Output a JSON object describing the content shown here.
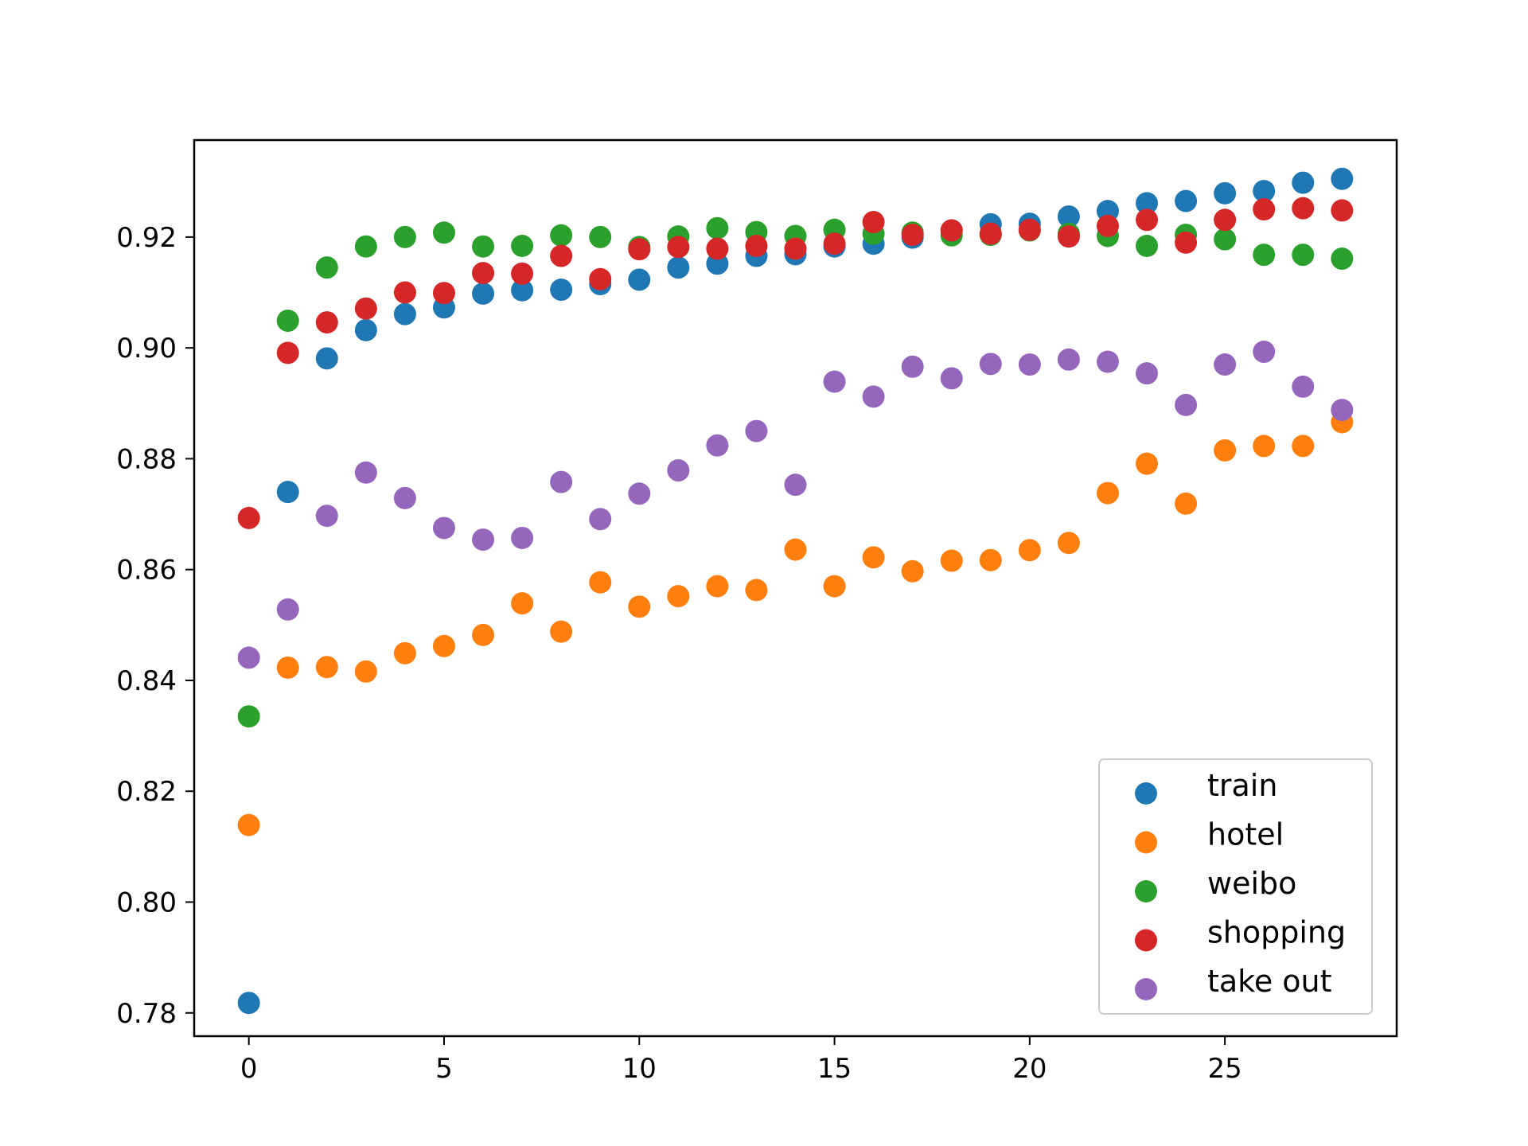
{
  "chart_data": {
    "type": "scatter",
    "title": "",
    "xlabel": "",
    "ylabel": "",
    "xlim": [
      -1.4,
      29.4
    ],
    "ylim": [
      0.7758,
      0.9375
    ],
    "x_ticks": [
      0,
      5,
      10,
      15,
      20,
      25
    ],
    "y_ticks": [
      0.78,
      0.8,
      0.82,
      0.84,
      0.86,
      0.88,
      0.9,
      0.92
    ],
    "x_tick_labels": [
      "0",
      "5",
      "10",
      "15",
      "20",
      "25"
    ],
    "y_tick_labels": [
      "0.78",
      "0.80",
      "0.82",
      "0.84",
      "0.86",
      "0.88",
      "0.90",
      "0.92"
    ],
    "grid": false,
    "legend_position": "lower-right",
    "x": [
      0,
      1,
      2,
      3,
      4,
      5,
      6,
      7,
      8,
      9,
      10,
      11,
      12,
      13,
      14,
      15,
      16,
      17,
      18,
      19,
      20,
      21,
      22,
      23,
      24,
      25,
      26,
      27,
      28
    ],
    "series": [
      {
        "name": "train",
        "color": "#1f77b4",
        "values": [
          0.7818,
          0.874,
          0.8981,
          0.9032,
          0.9061,
          0.9073,
          0.9098,
          0.9104,
          0.9105,
          0.9115,
          0.9123,
          0.9145,
          0.9152,
          0.9166,
          0.9169,
          0.9183,
          0.9188,
          0.9199,
          0.9212,
          0.9223,
          0.9224,
          0.9237,
          0.9247,
          0.9261,
          0.9265,
          0.9279,
          0.9283,
          0.9298,
          0.9305
        ]
      },
      {
        "name": "hotel",
        "color": "#ff7f0e",
        "values": [
          0.8139,
          0.8423,
          0.8424,
          0.8416,
          0.8449,
          0.8462,
          0.8482,
          0.8539,
          0.8488,
          0.8577,
          0.8533,
          0.8552,
          0.857,
          0.8563,
          0.8636,
          0.857,
          0.8622,
          0.8597,
          0.8616,
          0.8617,
          0.8635,
          0.8648,
          0.8738,
          0.8791,
          0.8719,
          0.8815,
          0.8823,
          0.8823,
          0.8866
        ]
      },
      {
        "name": "weibo",
        "color": "#2ca02c",
        "values": [
          0.8335,
          0.9049,
          0.9145,
          0.9183,
          0.92,
          0.9208,
          0.9183,
          0.9184,
          0.9203,
          0.92,
          0.9182,
          0.9201,
          0.9216,
          0.9209,
          0.9202,
          0.9213,
          0.9206,
          0.9208,
          0.9203,
          0.9204,
          0.9212,
          0.9206,
          0.9202,
          0.9184,
          0.9204,
          0.9196,
          0.9168,
          0.9168,
          0.9161
        ]
      },
      {
        "name": "shopping",
        "color": "#d62728",
        "values": [
          0.8693,
          0.8991,
          0.9046,
          0.9071,
          0.91,
          0.9099,
          0.9135,
          0.9134,
          0.9166,
          0.9124,
          0.9178,
          0.9182,
          0.9179,
          0.9184,
          0.9179,
          0.9188,
          0.9227,
          0.9204,
          0.9212,
          0.9206,
          0.9213,
          0.9201,
          0.922,
          0.9231,
          0.919,
          0.9231,
          0.925,
          0.9252,
          0.9248
        ]
      },
      {
        "name": "take out",
        "color": "#9467bd",
        "values": [
          0.8441,
          0.8528,
          0.8697,
          0.8775,
          0.8729,
          0.8675,
          0.8654,
          0.8657,
          0.8758,
          0.8691,
          0.8737,
          0.8779,
          0.8824,
          0.885,
          0.8753,
          0.8939,
          0.8912,
          0.8966,
          0.8945,
          0.8971,
          0.897,
          0.8979,
          0.8975,
          0.8954,
          0.8897,
          0.897,
          0.8993,
          0.893,
          0.8888
        ]
      }
    ]
  }
}
